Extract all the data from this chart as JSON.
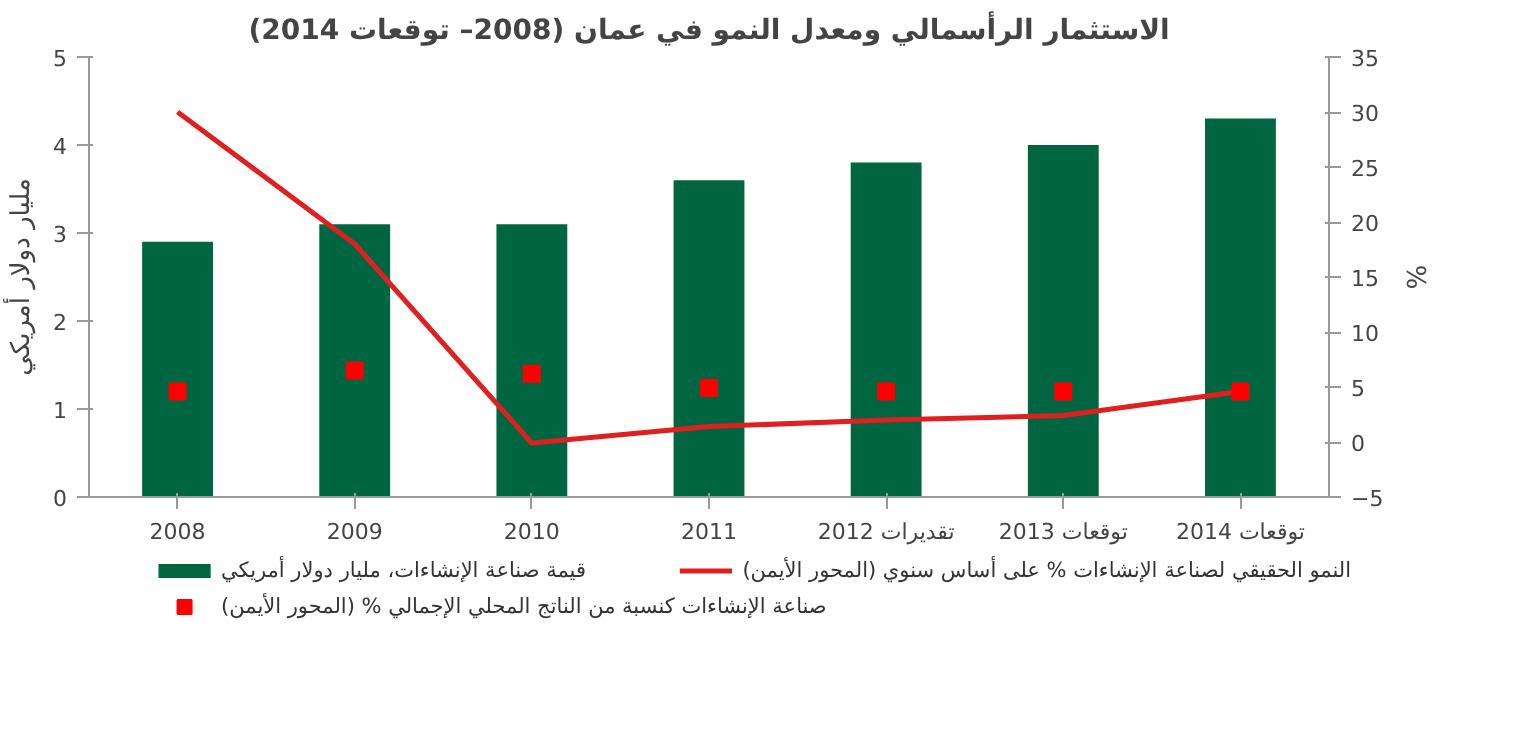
{
  "chart_data": {
    "type": "bar",
    "title": "الاستثمار الرأسمالي ومعدل النمو في عمان (2008– توقعات 2014)",
    "categories": [
      "2008",
      "2009",
      "2010",
      "2011",
      "2012 تقديرات",
      "2013 توقعات",
      "2014 توقعات"
    ],
    "series": [
      {
        "name": "قيمة صناعة الإنشاءات، مليار دولار أمريكي",
        "color": "#006641",
        "values": [
          2.9,
          3.1,
          3.1,
          3.6,
          3.8,
          4.0,
          4.3
        ]
      },
      {
        "name": "النمو الحقيقي لصناعة الإنشاءات % على أساس سنوي (المحور الأيمن)",
        "type": "line",
        "axis": "y2",
        "color": "#e02020",
        "values": [
          30,
          18,
          -0.1,
          1.4,
          2.0,
          2.4,
          4.6
        ]
      },
      {
        "name": "صناعة الإنشاءات كنسبة من الناتج المحلي الإجمالي % (المحور الأيمن)",
        "type": "scatter",
        "axis": "y2",
        "marker": "square",
        "color": "#ff0000",
        "values": [
          4.6,
          6.5,
          6.2,
          4.9,
          4.6,
          4.6,
          4.6
        ]
      }
    ],
    "ylabel": "مليار دولار أمريكي",
    "y2label": "%",
    "ylim": [
      0,
      5
    ],
    "yticks": [
      0,
      1,
      2,
      3,
      4,
      5
    ],
    "y2lim": [
      -5,
      35
    ],
    "y2ticks": [
      -5,
      0,
      5,
      10,
      15,
      20,
      25,
      30,
      35
    ],
    "grid": false,
    "legend": "bottom"
  }
}
